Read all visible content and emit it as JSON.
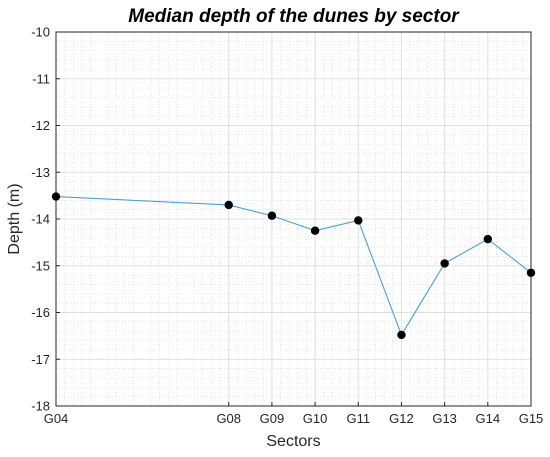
{
  "chart_data": {
    "type": "line",
    "title": "Median depth of the dunes by sector",
    "xlabel": "Sectors",
    "ylabel": "Depth (m)",
    "ylim": [
      -18,
      -10
    ],
    "yticks": [
      "-10",
      "-11",
      "-12",
      "-13",
      "-14",
      "-15",
      "-16",
      "-17",
      "-18"
    ],
    "grid": true,
    "minor_grid": true,
    "legend": "none",
    "line_color": "#4a9fd8",
    "marker_color": "#000000",
    "series": [
      {
        "points": [
          {
            "x": 4,
            "label": "G04",
            "y": -13.52
          },
          {
            "x": 8,
            "label": "G08",
            "y": -13.7
          },
          {
            "x": 9,
            "label": "G09",
            "y": -13.93
          },
          {
            "x": 10,
            "label": "G10",
            "y": -14.25
          },
          {
            "x": 11,
            "label": "G11",
            "y": -14.03
          },
          {
            "x": 12,
            "label": "G12",
            "y": -16.48
          },
          {
            "x": 13,
            "label": "G13",
            "y": -14.95
          },
          {
            "x": 14,
            "label": "G14",
            "y": -14.43
          },
          {
            "x": 15,
            "label": "G15",
            "y": -15.15
          }
        ]
      }
    ]
  }
}
